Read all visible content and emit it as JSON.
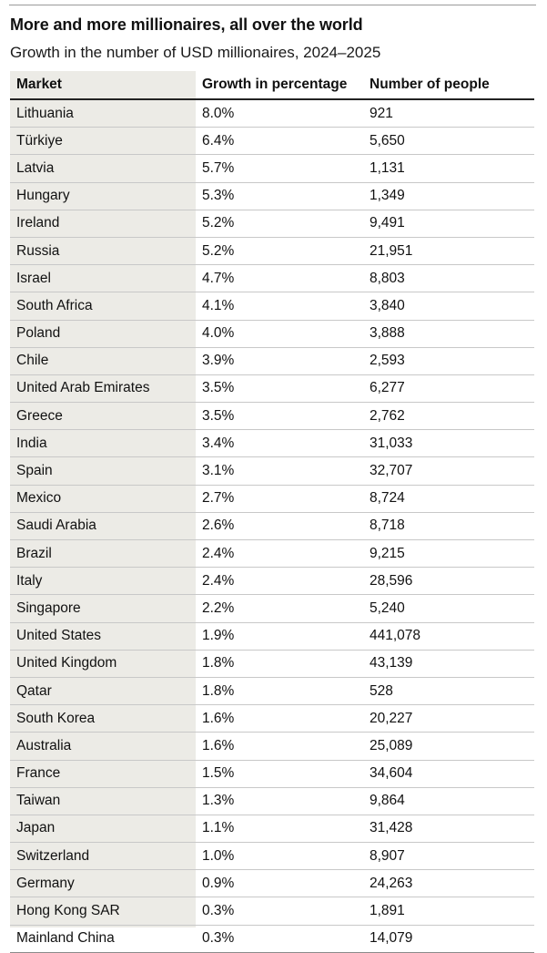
{
  "header": {
    "title": "More and more millionaires, all over the world",
    "subtitle": "Growth in the number of USD millionaires, 2024–2025"
  },
  "table": {
    "columns": [
      "Market",
      "Growth in percentage",
      "Number of people"
    ],
    "rows": [
      [
        "Lithuania",
        "8.0%",
        "921"
      ],
      [
        "Türkiye",
        "6.4%",
        "5,650"
      ],
      [
        "Latvia",
        "5.7%",
        "1,131"
      ],
      [
        "Hungary",
        "5.3%",
        "1,349"
      ],
      [
        "Ireland",
        "5.2%",
        "9,491"
      ],
      [
        "Russia",
        "5.2%",
        "21,951"
      ],
      [
        "Israel",
        "4.7%",
        "8,803"
      ],
      [
        "South Africa",
        "4.1%",
        "3,840"
      ],
      [
        "Poland",
        "4.0%",
        "3,888"
      ],
      [
        "Chile",
        "3.9%",
        "2,593"
      ],
      [
        "United Arab Emirates",
        "3.5%",
        "6,277"
      ],
      [
        "Greece",
        "3.5%",
        "2,762"
      ],
      [
        "India",
        "3.4%",
        "31,033"
      ],
      [
        "Spain",
        "3.1%",
        "32,707"
      ],
      [
        "Mexico",
        "2.7%",
        "8,724"
      ],
      [
        "Saudi Arabia",
        "2.6%",
        "8,718"
      ],
      [
        "Brazil",
        "2.4%",
        "9,215"
      ],
      [
        "Italy",
        "2.4%",
        "28,596"
      ],
      [
        "Singapore",
        "2.2%",
        "5,240"
      ],
      [
        "United States",
        "1.9%",
        "441,078"
      ],
      [
        "United Kingdom",
        "1.8%",
        "43,139"
      ],
      [
        "Qatar",
        "1.8%",
        "528"
      ],
      [
        "South Korea",
        "1.6%",
        "20,227"
      ],
      [
        "Australia",
        "1.6%",
        "25,089"
      ],
      [
        "France",
        "1.5%",
        "34,604"
      ],
      [
        "Taiwan",
        "1.3%",
        "9,864"
      ],
      [
        "Japan",
        "1.1%",
        "31,428"
      ],
      [
        "Switzerland",
        "1.0%",
        "8,907"
      ],
      [
        "Germany",
        "0.9%",
        "24,263"
      ],
      [
        "Hong Kong SAR",
        "0.3%",
        "1,891"
      ],
      [
        "Mainland China",
        "0.3%",
        "14,079"
      ]
    ]
  }
}
